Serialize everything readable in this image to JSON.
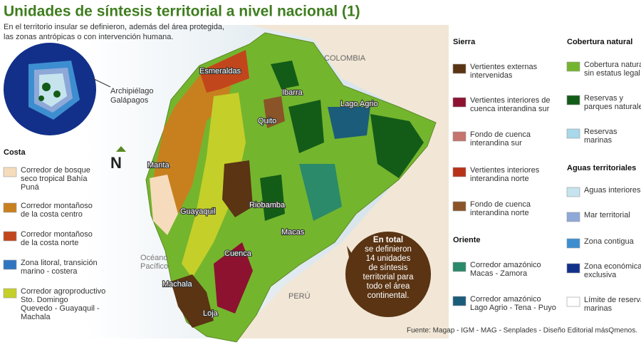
{
  "header": {
    "title": "Unidades de síntesis territorial a nivel nacional (1)",
    "subtitle": [
      "En el territorio insular se definieron, además del área protegida,",
      "las zonas antrópicas o con intervención humana."
    ]
  },
  "galapagos": {
    "label": [
      "Archipiélago",
      "Galápagos"
    ]
  },
  "compass": "N",
  "map_labels": [
    [
      "COLOMBIA"
    ],
    [
      "PERÚ"
    ],
    [
      "Océano",
      "Pacífico"
    ],
    [
      "Esmeraldas"
    ],
    [
      "Ibarra"
    ],
    [
      "Quito"
    ],
    [
      "Lago Agrio"
    ],
    [
      "Manta"
    ],
    [
      "Riobamba"
    ],
    [
      "Guayaquil"
    ],
    [
      "Macas"
    ],
    [
      "Cuenca"
    ],
    [
      "Machala"
    ],
    [
      "Loja"
    ]
  ],
  "legend": [
    {
      "heading": "Costa",
      "items": [
        {
          "label": [
            "Corredor de bosque",
            "seco tropical Bahía",
            "Puná"
          ],
          "color": "#f6dcbc"
        },
        {
          "label": [
            "Corredor montañoso",
            "de la costa centro"
          ],
          "color": "#c8801f"
        },
        {
          "label": [
            "Corredor montañoso",
            "de la costa norte"
          ],
          "color": "#c2461c"
        },
        {
          "label": [
            "Zona litoral, transición",
            "marino - costera"
          ],
          "color": "#2f75c0"
        },
        {
          "label": [
            "Corredor agroproductivo",
            "Sto. Domingo",
            "Quevedo - Guayaquil -",
            "Machala"
          ],
          "color": "#c5cf2a"
        }
      ]
    },
    {
      "heading": "Sierra",
      "items": [
        {
          "label": [
            "Vertientes externas",
            "intervenidas"
          ],
          "color": "#5a3413"
        },
        {
          "label": [
            "Vertientes interiores de",
            "cuenca interandina sur"
          ],
          "color": "#8c1230"
        },
        {
          "label": [
            "Fondo de cuenca",
            "interandina sur"
          ],
          "color": "#c5746e"
        },
        {
          "label": [
            "Vertientes interiores",
            "interandina norte"
          ],
          "color": "#b8321a"
        },
        {
          "label": [
            "Fondo de cuenca",
            "interandina norte"
          ],
          "color": "#8a5428"
        }
      ]
    },
    {
      "heading": "Oriente",
      "items": [
        {
          "label": [
            "Corredor amazónico",
            "Macas - Zamora"
          ],
          "color": "#2a8a6a"
        },
        {
          "label": [
            "Corredor amazónico",
            "Lago Agrio - Tena - Puyo"
          ],
          "color": "#1b5c7a"
        }
      ]
    },
    {
      "heading": "Cobertura natural",
      "items": [
        {
          "label": [
            "Cobertura natural",
            "sin estatus legal"
          ],
          "color": "#74b52e"
        },
        {
          "label": [
            "Reservas y",
            "parques naturales"
          ],
          "color": "#135c18"
        },
        {
          "label": [
            "Reservas",
            "marinas"
          ],
          "color": "#a8d8ea"
        }
      ]
    },
    {
      "heading": "Aguas territoriales",
      "items": [
        {
          "label": [
            "Aguas interiores"
          ],
          "color": "#c6e4ee"
        },
        {
          "label": [
            "Mar territorial"
          ],
          "color": "#8ea9d8"
        },
        {
          "label": [
            "Zona contigua"
          ],
          "color": "#3d8ed0"
        },
        {
          "label": [
            "Zona económica",
            "exclusiva"
          ],
          "color": "#12308a"
        },
        {
          "label": [
            "Límite de reservas",
            "marinas"
          ],
          "color": "#ffffff"
        }
      ]
    }
  ],
  "callout": [
    "En total",
    "se definieron",
    "14 unidades",
    "de síntesis",
    "territorial para",
    "todo el área",
    "continental."
  ],
  "source": "Fuente: Magap - IGM - MAG - Senplades - Diseño Editorial másQmenos."
}
